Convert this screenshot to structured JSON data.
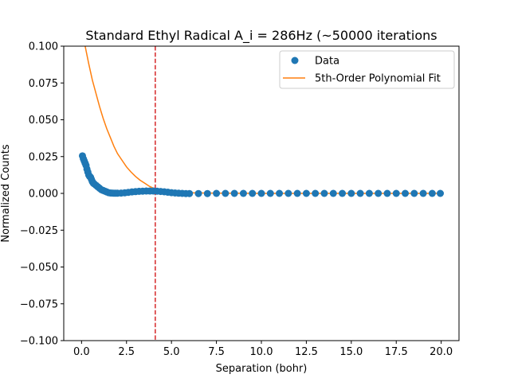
{
  "chart_data": {
    "type": "scatter",
    "title": "Standard Ethyl Radical A_i = 286Hz (~50000 iterations",
    "xlabel": "Separation (bohr)",
    "ylabel": "Normalized Counts",
    "xlim": [
      -0.99,
      20.99
    ],
    "ylim": [
      -0.1,
      0.1
    ],
    "x_ticks": [
      0.0,
      2.5,
      5.0,
      7.5,
      10.0,
      12.5,
      15.0,
      17.5,
      20.0
    ],
    "x_tick_labels": [
      "0.0",
      "2.5",
      "5.0",
      "7.5",
      "10.0",
      "12.5",
      "15.0",
      "17.5",
      "20.0"
    ],
    "y_ticks": [
      -0.1,
      -0.075,
      -0.05,
      -0.025,
      0.0,
      0.025,
      0.05,
      0.075,
      0.1
    ],
    "y_tick_labels": [
      "−0.100",
      "−0.075",
      "−0.050",
      "−0.025",
      "0.000",
      "0.025",
      "0.050",
      "0.075",
      "0.100"
    ],
    "grid": false,
    "legend_position": "top-right",
    "vline": {
      "x": 4.1,
      "color": "#d62728",
      "style": "dashed"
    },
    "series": [
      {
        "name": "Data",
        "kind": "scatter",
        "color": "#1f77b4",
        "x": [
          0.05,
          0.1,
          0.15,
          0.2,
          0.25,
          0.3,
          0.35,
          0.4,
          0.45,
          0.5,
          0.55,
          0.6,
          0.65,
          0.7,
          0.8,
          0.9,
          1.0,
          1.1,
          1.2,
          1.3,
          1.4,
          1.5,
          1.6,
          1.7,
          1.8,
          1.9,
          2.0,
          2.2,
          2.4,
          2.6,
          2.8,
          3.0,
          3.2,
          3.4,
          3.6,
          3.8,
          4.0,
          4.2,
          4.4,
          4.6,
          4.8,
          5.0,
          5.2,
          5.4,
          5.6,
          5.8,
          6.0,
          6.5,
          7.0,
          7.5,
          8.0,
          8.5,
          9.0,
          9.5,
          10.0,
          10.5,
          11.0,
          11.5,
          12.0,
          12.5,
          13.0,
          13.5,
          14.0,
          14.5,
          15.0,
          15.5,
          16.0,
          16.5,
          17.0,
          17.5,
          18.0,
          18.5,
          19.0,
          19.5,
          19.95
        ],
        "values": [
          0.0255,
          0.0235,
          0.022,
          0.0205,
          0.019,
          0.0165,
          0.0145,
          0.0125,
          0.0115,
          0.011,
          0.0095,
          0.008,
          0.007,
          0.0065,
          0.0055,
          0.0045,
          0.0035,
          0.0025,
          0.002,
          0.0015,
          0.001,
          0.0005,
          0.0003,
          0.0002,
          0.0001,
          0.0001,
          0.0001,
          0.0002,
          0.0004,
          0.0007,
          0.001,
          0.0012,
          0.0014,
          0.0015,
          0.0016,
          0.0016,
          0.0016,
          0.0015,
          0.0013,
          0.0011,
          0.0008,
          0.0005,
          0.0003,
          0.0001,
          0.0,
          -0.0001,
          -0.0001,
          -0.0001,
          -0.0001,
          0.0,
          0.0,
          0.0,
          0.0,
          0.0,
          0.0,
          0.0,
          0.0,
          0.0,
          0.0,
          0.0,
          0.0,
          0.0,
          0.0,
          0.0,
          0.0,
          0.0,
          0.0,
          0.0,
          0.0,
          0.0,
          0.0,
          0.0,
          0.0,
          0.0,
          0.0
        ]
      },
      {
        "name": "5th-Order Polynomial Fit",
        "kind": "line",
        "color": "#ff7f0e",
        "x": [
          0.2,
          0.4,
          0.6,
          0.8,
          1.0,
          1.2,
          1.4,
          1.6,
          1.8,
          2.0,
          2.25,
          2.5,
          2.75,
          3.0,
          3.25,
          3.5,
          3.75,
          4.0,
          4.25,
          4.5,
          5.0,
          5.5,
          6.0,
          7.0,
          8.0,
          10.0,
          12.0,
          14.0,
          16.0,
          18.0,
          20.0
        ],
        "values": [
          0.1,
          0.088,
          0.077,
          0.068,
          0.059,
          0.051,
          0.044,
          0.038,
          0.032,
          0.027,
          0.0225,
          0.018,
          0.0145,
          0.0115,
          0.009,
          0.007,
          0.005,
          0.0035,
          0.0025,
          0.0018,
          0.001,
          0.0006,
          0.0004,
          0.0002,
          0.0001,
          0.0,
          0.0,
          0.0,
          0.0,
          0.0,
          0.0
        ]
      }
    ]
  }
}
